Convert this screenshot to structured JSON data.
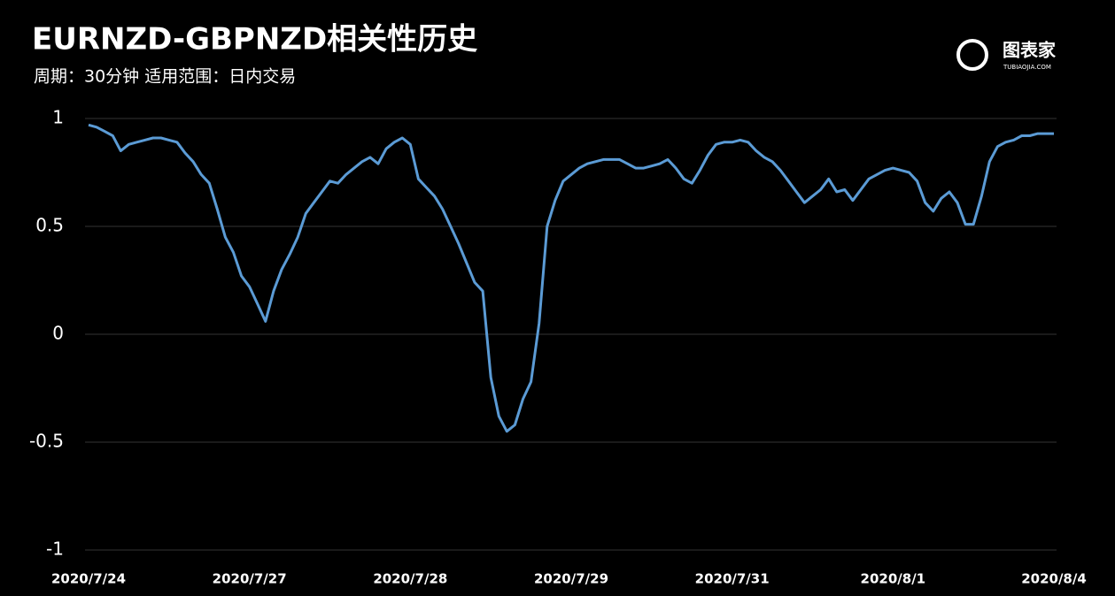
{
  "chart_data": {
    "type": "line",
    "title": "EURNZD-GBPNZD相关性历史",
    "subtitle": "周期：30分钟  适用范围：日内交易",
    "brand": "图表家",
    "brand_url": "TUBIAOJIA.COM",
    "color": "#5b9bd5",
    "grid": true,
    "xlim": [
      0,
      120
    ],
    "xticks": [
      {
        "value": 0,
        "label": "2020/7/24"
      },
      {
        "value": 20,
        "label": "2020/7/27"
      },
      {
        "value": 40,
        "label": "2020/7/28"
      },
      {
        "value": 60,
        "label": "2020/7/29"
      },
      {
        "value": 80,
        "label": "2020/7/31"
      },
      {
        "value": 100,
        "label": "2020/8/1"
      },
      {
        "value": 120,
        "label": "2020/8/4"
      }
    ],
    "ylim": [
      -1,
      1
    ],
    "yticks": [
      1,
      0.5,
      0,
      -0.5,
      -1
    ],
    "values": [
      0.97,
      0.96,
      0.94,
      0.92,
      0.85,
      0.88,
      0.89,
      0.9,
      0.91,
      0.91,
      0.9,
      0.89,
      0.84,
      0.8,
      0.74,
      0.7,
      0.58,
      0.45,
      0.38,
      0.27,
      0.22,
      0.14,
      0.06,
      0.2,
      0.3,
      0.37,
      0.45,
      0.56,
      0.61,
      0.66,
      0.71,
      0.7,
      0.74,
      0.77,
      0.8,
      0.82,
      0.79,
      0.86,
      0.89,
      0.91,
      0.88,
      0.72,
      0.68,
      0.64,
      0.58,
      0.5,
      0.42,
      0.33,
      0.24,
      0.2,
      -0.2,
      -0.38,
      -0.45,
      -0.42,
      -0.3,
      -0.22,
      0.05,
      0.5,
      0.62,
      0.71,
      0.74,
      0.77,
      0.79,
      0.8,
      0.81,
      0.81,
      0.81,
      0.79,
      0.77,
      0.77,
      0.78,
      0.79,
      0.81,
      0.77,
      0.72,
      0.7,
      0.76,
      0.83,
      0.88,
      0.89,
      0.89,
      0.9,
      0.89,
      0.85,
      0.82,
      0.8,
      0.76,
      0.71,
      0.66,
      0.61,
      0.64,
      0.67,
      0.72,
      0.66,
      0.67,
      0.62,
      0.67,
      0.72,
      0.74,
      0.76,
      0.77,
      0.76,
      0.75,
      0.71,
      0.61,
      0.57,
      0.63,
      0.66,
      0.61,
      0.51,
      0.51,
      0.64,
      0.8,
      0.87,
      0.89,
      0.9,
      0.92,
      0.92,
      0.93,
      0.93,
      0.93
    ]
  }
}
